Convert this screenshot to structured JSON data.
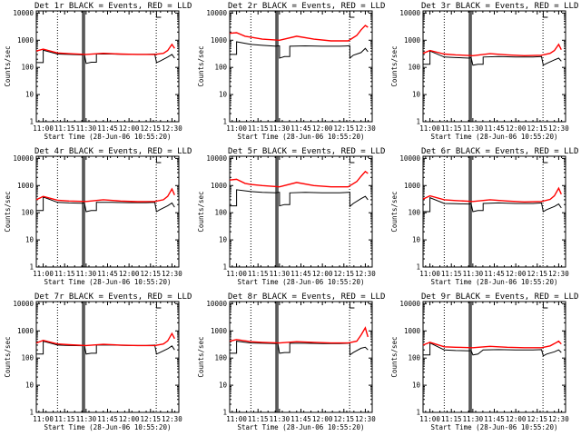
{
  "figure": {
    "title_suffix": " BLACK = Events, RED = LLD",
    "xlabel": "Start Time (28-Jun-06 10:55:20)",
    "ylabel": "Counts/sec",
    "x_ticks": [
      "11:00",
      "11:15",
      "11:30",
      "11:45",
      "12:00",
      "12:15",
      "12:30"
    ],
    "y_ticks": [
      "1",
      "10",
      "100",
      "1000",
      "10000"
    ],
    "colors": {
      "events": "#000000",
      "lld": "#ff0000"
    }
  },
  "chart_data": [
    {
      "type": "line",
      "detector": "Det 1r",
      "xlim": [
        10.92,
        12.58
      ],
      "ylim_log10": [
        0,
        4.08
      ],
      "vlines_dotted": [
        11.167,
        12.317
      ],
      "vlines_solid": [
        11.46,
        11.48
      ],
      "series": [
        {
          "name": "Events",
          "x": [
            10.92,
            11.0,
            11.167,
            11.3,
            11.46,
            11.48,
            11.5,
            11.56,
            11.62,
            11.8,
            12.0,
            12.2,
            12.3,
            12.32,
            12.36,
            12.45,
            12.5,
            12.53
          ],
          "y": [
            150,
            430,
            310,
            300,
            290,
            300,
            140,
            155,
            310,
            310,
            300,
            300,
            310,
            150,
            170,
            240,
            300,
            220
          ]
        },
        {
          "name": "LLD",
          "x": [
            10.92,
            11.0,
            11.167,
            11.3,
            11.5,
            11.7,
            11.9,
            12.1,
            12.3,
            12.4,
            12.45,
            12.5,
            12.53
          ],
          "y": [
            400,
            470,
            340,
            320,
            300,
            330,
            310,
            300,
            300,
            330,
            420,
            700,
            500
          ]
        }
      ]
    },
    {
      "type": "line",
      "detector": "Det 2r",
      "xlim": [
        10.92,
        12.58
      ],
      "ylim_log10": [
        0,
        4.08
      ],
      "vlines_dotted": [
        11.167,
        12.317
      ],
      "vlines_solid": [
        11.46,
        11.48
      ],
      "series": [
        {
          "name": "Events",
          "x": [
            10.92,
            11.0,
            11.167,
            11.3,
            11.46,
            11.48,
            11.5,
            11.56,
            11.62,
            11.8,
            12.0,
            12.2,
            12.3,
            12.32,
            12.36,
            12.45,
            12.5,
            12.53
          ],
          "y": [
            300,
            880,
            700,
            650,
            600,
            620,
            220,
            250,
            600,
            620,
            600,
            600,
            620,
            220,
            280,
            350,
            500,
            380
          ]
        },
        {
          "name": "LLD",
          "x": [
            10.92,
            11.0,
            11.1,
            11.167,
            11.3,
            11.5,
            11.7,
            11.9,
            12.1,
            12.3,
            12.4,
            12.45,
            12.5,
            12.53
          ],
          "y": [
            1800,
            1900,
            1400,
            1300,
            1100,
            1000,
            1400,
            1100,
            950,
            950,
            1500,
            2400,
            3500,
            3000
          ]
        }
      ]
    },
    {
      "type": "line",
      "detector": "Det 3r",
      "xlim": [
        10.92,
        12.58
      ],
      "ylim_log10": [
        0,
        4.08
      ],
      "vlines_dotted": [
        11.167,
        12.317
      ],
      "vlines_solid": [
        11.46,
        11.48
      ],
      "series": [
        {
          "name": "Events",
          "x": [
            10.92,
            11.0,
            11.167,
            11.3,
            11.46,
            11.48,
            11.5,
            11.56,
            11.62,
            11.8,
            12.0,
            12.2,
            12.3,
            12.32,
            12.36,
            12.45,
            12.5,
            12.53
          ],
          "y": [
            130,
            400,
            240,
            230,
            220,
            230,
            120,
            130,
            240,
            250,
            240,
            240,
            250,
            120,
            140,
            190,
            220,
            170
          ]
        },
        {
          "name": "LLD",
          "x": [
            10.92,
            11.0,
            11.167,
            11.3,
            11.5,
            11.7,
            11.9,
            12.1,
            12.3,
            12.4,
            12.45,
            12.5,
            12.53
          ],
          "y": [
            330,
            420,
            310,
            290,
            270,
            320,
            290,
            270,
            280,
            330,
            420,
            700,
            450
          ]
        }
      ]
    },
    {
      "type": "line",
      "detector": "Det 4r",
      "xlim": [
        10.92,
        12.58
      ],
      "ylim_log10": [
        0,
        4.08
      ],
      "vlines_dotted": [
        11.167,
        12.317
      ],
      "vlines_solid": [
        11.46,
        11.48
      ],
      "series": [
        {
          "name": "Events",
          "x": [
            10.92,
            11.0,
            11.167,
            11.3,
            11.46,
            11.48,
            11.5,
            11.56,
            11.62,
            11.8,
            12.0,
            12.2,
            12.3,
            12.32,
            12.36,
            12.45,
            12.5,
            12.53
          ],
          "y": [
            120,
            380,
            240,
            230,
            225,
            230,
            110,
            120,
            240,
            240,
            235,
            235,
            240,
            110,
            130,
            180,
            230,
            160
          ]
        },
        {
          "name": "LLD",
          "x": [
            10.92,
            11.0,
            11.167,
            11.3,
            11.5,
            11.7,
            11.9,
            12.1,
            12.3,
            12.4,
            12.45,
            12.5,
            12.53
          ],
          "y": [
            300,
            400,
            290,
            270,
            260,
            300,
            270,
            255,
            260,
            300,
            400,
            750,
            450
          ]
        }
      ]
    },
    {
      "type": "line",
      "detector": "Det 5r",
      "xlim": [
        10.92,
        12.58
      ],
      "ylim_log10": [
        0,
        4.08
      ],
      "vlines_dotted": [
        11.167,
        12.317
      ],
      "vlines_solid": [
        11.46,
        11.48
      ],
      "series": [
        {
          "name": "Events",
          "x": [
            10.92,
            11.0,
            11.167,
            11.3,
            11.46,
            11.48,
            11.5,
            11.56,
            11.62,
            11.8,
            12.0,
            12.2,
            12.3,
            12.32,
            12.36,
            12.45,
            12.5,
            12.53
          ],
          "y": [
            180,
            700,
            600,
            560,
            540,
            560,
            180,
            200,
            540,
            560,
            540,
            540,
            560,
            170,
            220,
            330,
            400,
            300
          ]
        },
        {
          "name": "LLD",
          "x": [
            10.92,
            11.0,
            11.1,
            11.167,
            11.3,
            11.5,
            11.7,
            11.9,
            12.1,
            12.3,
            12.4,
            12.45,
            12.5,
            12.53
          ],
          "y": [
            1600,
            1700,
            1200,
            1100,
            1000,
            900,
            1300,
            1000,
            900,
            900,
            1400,
            2200,
            3300,
            2800
          ]
        }
      ]
    },
    {
      "type": "line",
      "detector": "Det 6r",
      "xlim": [
        10.92,
        12.58
      ],
      "ylim_log10": [
        0,
        4.08
      ],
      "vlines_dotted": [
        11.167,
        12.317
      ],
      "vlines_solid": [
        11.46,
        11.48
      ],
      "series": [
        {
          "name": "Events",
          "x": [
            10.92,
            11.0,
            11.167,
            11.3,
            11.46,
            11.48,
            11.5,
            11.56,
            11.62,
            11.8,
            12.0,
            12.2,
            12.3,
            12.32,
            12.36,
            12.45,
            12.5,
            12.53
          ],
          "y": [
            110,
            360,
            220,
            215,
            210,
            215,
            110,
            120,
            220,
            230,
            220,
            220,
            230,
            110,
            130,
            170,
            210,
            150
          ]
        },
        {
          "name": "LLD",
          "x": [
            10.92,
            11.0,
            11.167,
            11.3,
            11.5,
            11.7,
            11.9,
            12.1,
            12.3,
            12.4,
            12.45,
            12.5,
            12.53
          ],
          "y": [
            320,
            420,
            300,
            280,
            260,
            300,
            270,
            250,
            260,
            310,
            420,
            800,
            480
          ]
        }
      ]
    },
    {
      "type": "line",
      "detector": "Det 7r",
      "xlim": [
        10.92,
        12.58
      ],
      "ylim_log10": [
        0,
        4.08
      ],
      "vlines_dotted": [
        11.167,
        12.317
      ],
      "vlines_solid": [
        11.46,
        11.48
      ],
      "series": [
        {
          "name": "Events",
          "x": [
            10.92,
            11.0,
            11.167,
            11.3,
            11.46,
            11.48,
            11.5,
            11.56,
            11.62,
            11.8,
            12.0,
            12.2,
            12.3,
            12.32,
            12.36,
            12.45,
            12.5,
            12.53
          ],
          "y": [
            140,
            420,
            300,
            290,
            285,
            295,
            140,
            150,
            300,
            300,
            290,
            290,
            300,
            140,
            160,
            220,
            280,
            200
          ]
        },
        {
          "name": "LLD",
          "x": [
            10.92,
            11.0,
            11.167,
            11.3,
            11.5,
            11.7,
            11.9,
            12.1,
            12.3,
            12.4,
            12.45,
            12.5,
            12.53
          ],
          "y": [
            360,
            450,
            330,
            310,
            290,
            320,
            300,
            290,
            290,
            330,
            430,
            800,
            520
          ]
        }
      ]
    },
    {
      "type": "line",
      "detector": "Det 8r",
      "xlim": [
        10.92,
        12.58
      ],
      "ylim_log10": [
        0,
        4.08
      ],
      "vlines_dotted": [
        11.167,
        12.317
      ],
      "vlines_solid": [
        11.46,
        11.48
      ],
      "series": [
        {
          "name": "Events",
          "x": [
            10.92,
            11.0,
            11.167,
            11.3,
            11.46,
            11.48,
            11.5,
            11.56,
            11.62,
            11.8,
            12.0,
            12.2,
            12.3,
            12.32,
            12.36,
            12.45,
            12.5,
            12.53
          ],
          "y": [
            150,
            420,
            360,
            350,
            340,
            350,
            150,
            160,
            350,
            350,
            340,
            340,
            350,
            130,
            160,
            230,
            250,
            200
          ]
        },
        {
          "name": "LLD",
          "x": [
            10.92,
            11.0,
            11.167,
            11.3,
            11.5,
            11.7,
            11.9,
            12.1,
            12.3,
            12.4,
            12.45,
            12.5,
            12.53
          ],
          "y": [
            420,
            480,
            400,
            380,
            360,
            400,
            380,
            360,
            360,
            420,
            700,
            1300,
            600
          ]
        }
      ]
    },
    {
      "type": "line",
      "detector": "Det 9r",
      "xlim": [
        10.92,
        12.58
      ],
      "ylim_log10": [
        0,
        4.08
      ],
      "vlines_dotted": [
        11.167,
        12.317
      ],
      "vlines_solid": [
        11.46,
        11.48
      ],
      "series": [
        {
          "name": "Events",
          "x": [
            10.92,
            11.0,
            11.167,
            11.3,
            11.46,
            11.48,
            11.5,
            11.56,
            11.62,
            11.8,
            12.0,
            12.2,
            12.3,
            12.32,
            12.36,
            12.45,
            12.5,
            12.53
          ],
          "y": [
            130,
            360,
            200,
            190,
            185,
            190,
            130,
            140,
            200,
            205,
            200,
            200,
            205,
            120,
            140,
            170,
            200,
            160
          ]
        },
        {
          "name": "LLD",
          "x": [
            10.92,
            11.0,
            11.167,
            11.3,
            11.5,
            11.7,
            11.9,
            12.1,
            12.3,
            12.4,
            12.45,
            12.5,
            12.53
          ],
          "y": [
            300,
            380,
            260,
            250,
            240,
            270,
            250,
            240,
            240,
            280,
            340,
            420,
            330
          ]
        }
      ]
    }
  ]
}
